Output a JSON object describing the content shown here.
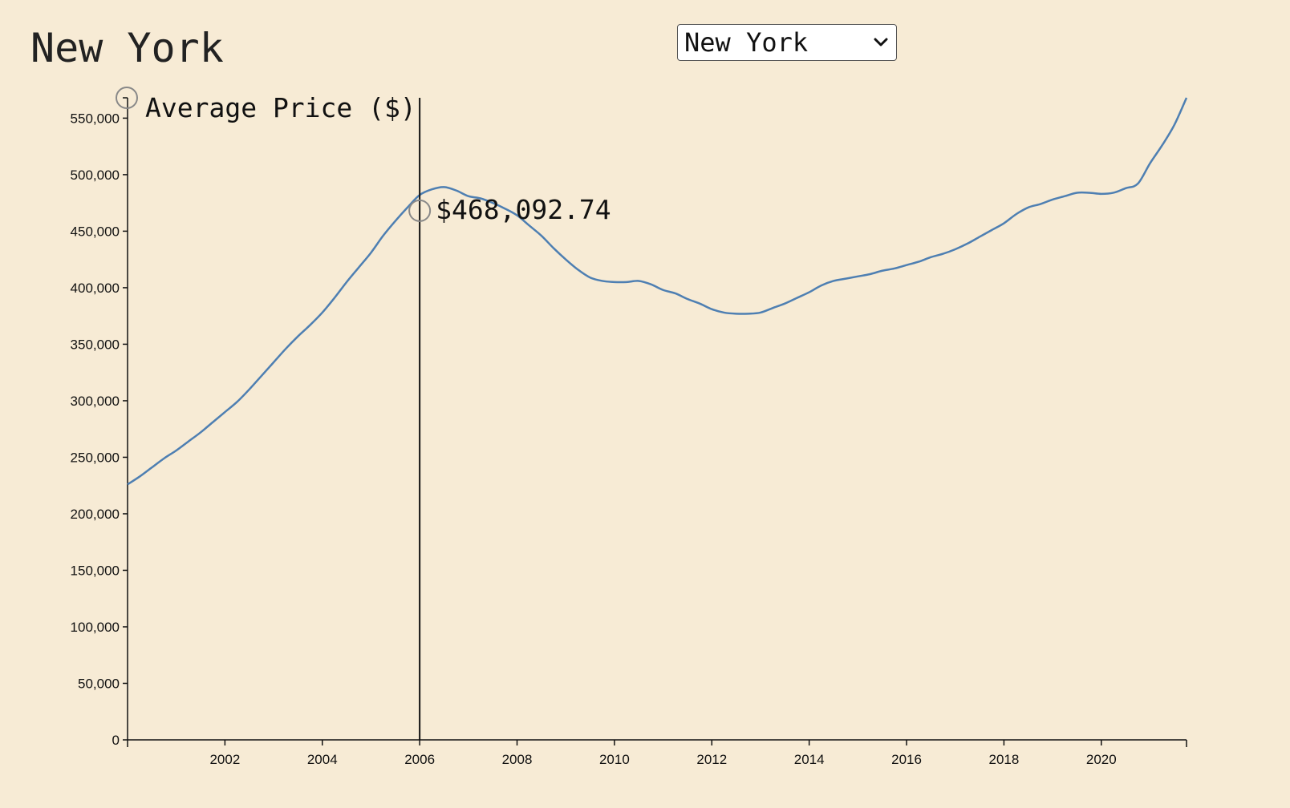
{
  "header": {
    "title": "New York"
  },
  "city_select": {
    "selected": "New York"
  },
  "colors": {
    "background": "#f7ebd5",
    "line": "#4e7fb2",
    "axis": "#111111"
  },
  "tooltip": {
    "value_label": "$468,092.74",
    "x": "2006",
    "y": 468092.74
  },
  "chart_data": {
    "type": "line",
    "title": "New York",
    "ylabel": "Average Price ($)",
    "xlabel": "",
    "xlim": [
      2000.0,
      2021.75
    ],
    "ylim": [
      0,
      568000
    ],
    "xticks": [
      2002,
      2004,
      2006,
      2008,
      2010,
      2012,
      2014,
      2016,
      2018,
      2020
    ],
    "xtick_labels": [
      "2002",
      "2004",
      "2006",
      "2008",
      "2010",
      "2012",
      "2014",
      "2016",
      "2018",
      "2020"
    ],
    "yticks": [
      0,
      50000,
      100000,
      150000,
      200000,
      250000,
      300000,
      350000,
      400000,
      450000,
      500000,
      550000
    ],
    "ytick_labels": [
      "0",
      "50,000",
      "100,000",
      "150,000",
      "200,000",
      "250,000",
      "300,000",
      "350,000",
      "400,000",
      "450,000",
      "500,000",
      "550,000"
    ],
    "grid": false,
    "series": [
      {
        "x": [
          2000.0,
          2000.25,
          2000.5,
          2000.75,
          2001.0,
          2001.25,
          2001.5,
          2001.75,
          2002.0,
          2002.25,
          2002.5,
          2002.75,
          2003.0,
          2003.25,
          2003.5,
          2003.75,
          2004.0,
          2004.25,
          2004.5,
          2004.75,
          2005.0,
          2005.25,
          2005.5,
          2005.75,
          2006.0,
          2006.25,
          2006.5,
          2006.75,
          2007.0,
          2007.25,
          2007.5,
          2007.75,
          2008.0,
          2008.25,
          2008.5,
          2008.75,
          2009.0,
          2009.25,
          2009.5,
          2009.75,
          2010.0,
          2010.25,
          2010.5,
          2010.75,
          2011.0,
          2011.25,
          2011.5,
          2011.75,
          2012.0,
          2012.25,
          2012.5,
          2012.75,
          2013.0,
          2013.25,
          2013.5,
          2013.75,
          2014.0,
          2014.25,
          2014.5,
          2014.75,
          2015.0,
          2015.25,
          2015.5,
          2015.75,
          2016.0,
          2016.25,
          2016.5,
          2016.75,
          2017.0,
          2017.25,
          2017.5,
          2017.75,
          2018.0,
          2018.25,
          2018.5,
          2018.75,
          2019.0,
          2019.25,
          2019.5,
          2019.75,
          2020.0,
          2020.25,
          2020.5,
          2020.75,
          2021.0,
          2021.25,
          2021.5,
          2021.75
        ],
        "y": [
          226000,
          233000,
          241000,
          249000,
          256000,
          264000,
          272000,
          281000,
          290000,
          299000,
          310000,
          322000,
          334000,
          346000,
          357000,
          367000,
          378000,
          391000,
          405000,
          418000,
          431000,
          446000,
          459000,
          471000,
          482000,
          487000,
          489000,
          486000,
          481000,
          479000,
          475000,
          470000,
          464000,
          455000,
          446000,
          435000,
          425000,
          416000,
          409000,
          406000,
          405000,
          405000,
          406000,
          403000,
          398000,
          395000,
          390000,
          386000,
          381000,
          378000,
          377000,
          377000,
          378000,
          382000,
          386000,
          391000,
          396000,
          402000,
          406000,
          408000,
          410000,
          412000,
          415000,
          417000,
          420000,
          423000,
          427000,
          430000,
          434000,
          439000,
          445000,
          451000,
          457000,
          465000,
          471000,
          474000,
          478000,
          481000,
          484000,
          484000,
          483000,
          484000,
          488000,
          492000,
          510000,
          526000,
          544000,
          568000
        ]
      }
    ]
  }
}
